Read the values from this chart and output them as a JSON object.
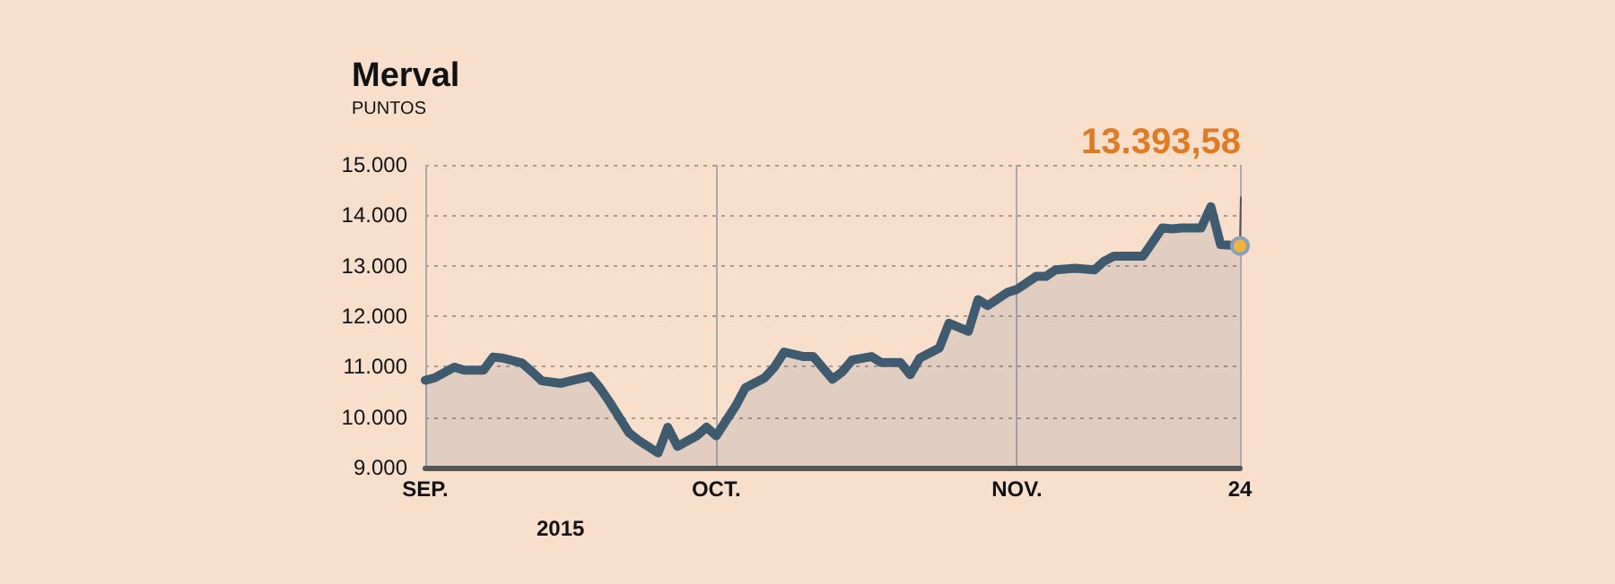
{
  "chart_data": {
    "type": "area",
    "title": "Merval",
    "subtitle": "PUNTOS",
    "xlabel": "2015",
    "x": [
      "2015-09-01",
      "2015-09-02",
      "2015-09-04",
      "2015-09-05",
      "2015-09-07",
      "2015-09-08",
      "2015-09-09",
      "2015-09-11",
      "2015-09-12",
      "2015-09-13",
      "2015-09-15",
      "2015-09-16",
      "2015-09-18",
      "2015-09-19",
      "2015-09-20",
      "2015-09-22",
      "2015-09-23",
      "2015-09-25",
      "2015-09-26",
      "2015-09-27",
      "2015-09-29",
      "2015-09-30",
      "2015-10-01",
      "2015-10-03",
      "2015-10-04",
      "2015-10-06",
      "2015-10-07",
      "2015-10-08",
      "2015-10-10",
      "2015-10-11",
      "2015-10-13",
      "2015-10-14",
      "2015-10-15",
      "2015-10-17",
      "2015-10-18",
      "2015-10-20",
      "2015-10-21",
      "2015-10-22",
      "2015-10-24",
      "2015-10-25",
      "2015-10-27",
      "2015-10-28",
      "2015-10-29",
      "2015-10-31",
      "2015-11-01",
      "2015-11-03",
      "2015-11-04",
      "2015-11-05",
      "2015-11-07",
      "2015-11-09",
      "2015-11-10",
      "2015-11-11",
      "2015-11-13",
      "2015-11-14",
      "2015-11-16",
      "2015-11-17",
      "2015-11-18",
      "2015-11-20",
      "2015-11-21",
      "2015-11-22",
      "2015-11-24"
    ],
    "series": [
      {
        "color": "#3e5b6f",
        "values": [
          10730,
          10780,
          10990,
          10930,
          10930,
          11190,
          11170,
          11070,
          10900,
          10720,
          10670,
          10720,
          10810,
          10580,
          10300,
          9690,
          9540,
          9290,
          9800,
          9420,
          9630,
          9800,
          9630,
          10220,
          10580,
          10780,
          10990,
          11290,
          11200,
          11200,
          10750,
          10900,
          11130,
          11200,
          11080,
          11080,
          10840,
          11170,
          11370,
          11860,
          11700,
          12330,
          12210,
          12470,
          12530,
          12790,
          12790,
          12920,
          12950,
          12920,
          13090,
          13190,
          13190,
          13190,
          13750,
          13730,
          13750,
          13750,
          14170,
          13420,
          13393.58
        ],
        "value_labels": [
          null,
          null,
          null,
          null,
          null,
          null,
          null,
          null,
          null,
          null,
          null,
          null,
          null,
          null,
          null,
          null,
          null,
          null,
          null,
          null,
          null,
          null,
          null,
          null,
          null,
          null,
          null,
          null,
          null,
          null,
          null,
          null,
          null,
          null,
          null,
          null,
          null,
          null,
          null,
          null,
          null,
          null,
          null,
          null,
          null,
          null,
          null,
          null,
          null,
          null,
          null,
          null,
          null,
          null,
          null,
          null,
          null,
          null,
          null,
          null,
          "13.393,58"
        ]
      }
    ],
    "xlim": [
      "2015-09-01",
      "2015-11-24"
    ],
    "xticks": [
      {
        "value": "2015-09-01",
        "label": "SEP."
      },
      {
        "value": "2015-10-01",
        "label": "OCT."
      },
      {
        "value": "2015-11-01",
        "label": "NOV."
      },
      {
        "value": "2015-11-24",
        "label": "24"
      }
    ],
    "ylim": [
      9000,
      15000
    ],
    "yticks": [
      {
        "value": 9000,
        "label": "9.000"
      },
      {
        "value": 10000,
        "label": "10.000"
      },
      {
        "value": 11000,
        "label": "11.000"
      },
      {
        "value": 12000,
        "label": "12.000"
      },
      {
        "value": 13000,
        "label": "13.000"
      },
      {
        "value": 14000,
        "label": "14.000"
      },
      {
        "value": 15000,
        "label": "15.000"
      }
    ],
    "grid": true
  }
}
